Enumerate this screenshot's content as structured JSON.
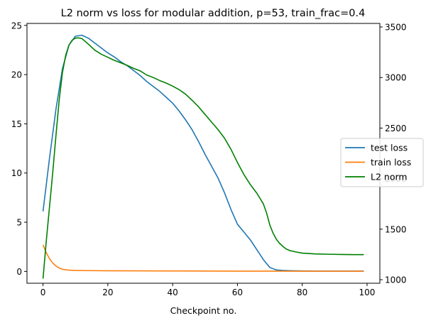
{
  "chart_data": {
    "type": "line",
    "title": "L2 norm vs loss for modular addition, p=53, train_frac=0.4",
    "xlabel": "Checkpoint no.",
    "ylabel": "",
    "ylabel_right": "",
    "xlim": [
      -4.95,
      103.95
    ],
    "ylim": [
      -1.2,
      25.2
    ],
    "ylim_right": [
      965,
      3535
    ],
    "xticks": [
      0,
      20,
      40,
      60,
      80,
      100
    ],
    "yticks": [
      0,
      5,
      10,
      15,
      20,
      25
    ],
    "yticks_right": [
      1000,
      1500,
      2000,
      2500,
      3000,
      3500
    ],
    "legend_position": "center-right",
    "grid": false,
    "series": [
      {
        "name": "test loss",
        "axis": "left",
        "color": "#1f77b4",
        "x": [
          0,
          2,
          4,
          6,
          8,
          10,
          12,
          14,
          16,
          18,
          20,
          22,
          24,
          26,
          28,
          30,
          32,
          34,
          36,
          38,
          40,
          42,
          44,
          46,
          48,
          50,
          52,
          54,
          56,
          58,
          60,
          62,
          64,
          66,
          68,
          70,
          72,
          74,
          76,
          80,
          85,
          90,
          95,
          99
        ],
        "values": [
          6.1,
          11.5,
          16.5,
          20.6,
          23.0,
          23.9,
          24.0,
          23.7,
          23.2,
          22.7,
          22.2,
          21.8,
          21.3,
          20.9,
          20.4,
          19.9,
          19.3,
          18.8,
          18.3,
          17.7,
          17.1,
          16.3,
          15.4,
          14.4,
          13.2,
          11.9,
          10.7,
          9.5,
          8.0,
          6.3,
          4.8,
          4.0,
          3.2,
          2.2,
          1.2,
          0.4,
          0.15,
          0.1,
          0.08,
          0.05,
          0.04,
          0.04,
          0.04,
          0.04
        ]
      },
      {
        "name": "train loss",
        "axis": "left",
        "color": "#ff7f0e",
        "x": [
          0,
          1,
          2,
          3,
          4,
          5,
          6,
          8,
          10,
          15,
          20,
          30,
          40,
          50,
          60,
          70,
          80,
          90,
          99
        ],
        "values": [
          2.7,
          1.9,
          1.3,
          0.85,
          0.55,
          0.35,
          0.22,
          0.13,
          0.1,
          0.08,
          0.07,
          0.06,
          0.05,
          0.04,
          0.03,
          0.03,
          0.02,
          0.02,
          0.02
        ]
      },
      {
        "name": "L2 norm",
        "axis": "right",
        "color": "#008000",
        "x": [
          0,
          1,
          2,
          3,
          4,
          5,
          6,
          7,
          8,
          9,
          10,
          11,
          12,
          14,
          16,
          18,
          20,
          22,
          24,
          26,
          28,
          30,
          32,
          34,
          36,
          38,
          40,
          42,
          44,
          46,
          48,
          50,
          52,
          54,
          56,
          58,
          60,
          62,
          64,
          66,
          68,
          69,
          70,
          71,
          72,
          73,
          74,
          75,
          76,
          78,
          80,
          84,
          88,
          92,
          96,
          99
        ],
        "values": [
          1010,
          1380,
          1720,
          2060,
          2430,
          2780,
          3050,
          3220,
          3320,
          3370,
          3390,
          3392,
          3385,
          3330,
          3270,
          3230,
          3200,
          3170,
          3145,
          3120,
          3090,
          3065,
          3025,
          3000,
          2970,
          2945,
          2915,
          2880,
          2835,
          2775,
          2710,
          2635,
          2560,
          2485,
          2400,
          2290,
          2160,
          2040,
          1940,
          1855,
          1750,
          1660,
          1540,
          1460,
          1400,
          1360,
          1330,
          1305,
          1290,
          1275,
          1263,
          1255,
          1252,
          1250,
          1248,
          1248
        ]
      }
    ]
  }
}
